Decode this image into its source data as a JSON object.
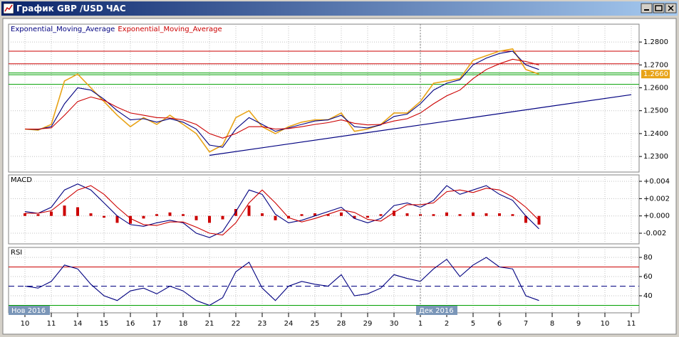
{
  "window": {
    "title": "График GBP /USD ЧАС",
    "period_labels": [
      "Нов 2016",
      "Дек 2016"
    ]
  },
  "chart_data": [
    {
      "type": "line",
      "categories": [
        "10",
        null,
        "11",
        null,
        "14",
        null,
        "15",
        null,
        "16",
        null,
        "17",
        null,
        "18",
        null,
        "21",
        null,
        "22",
        null,
        "23",
        null,
        "24",
        null,
        "25",
        null,
        "28",
        null,
        "29",
        null,
        "30",
        null,
        "1",
        null,
        "2",
        null,
        "5",
        null,
        "6",
        null,
        "7",
        null,
        "8",
        null,
        "9",
        null,
        "10",
        null,
        "11",
        null
      ],
      "ylim": [
        1.2232,
        1.2878
      ],
      "yticks": [
        {
          "value": 1.23,
          "label": "1.2300"
        },
        {
          "value": 1.24,
          "label": "1.2400"
        },
        {
          "value": 1.25,
          "label": "1.2500"
        },
        {
          "value": 1.26,
          "label": "1.2600"
        },
        {
          "value": 1.27,
          "label": "1.2700"
        },
        {
          "value": 1.28,
          "label": "1.2800"
        }
      ],
      "grid": true,
      "last_price": {
        "value": 1.266,
        "label": "1.2660"
      },
      "hlines": [
        {
          "value": 1.276,
          "color": "#cc0000"
        },
        {
          "value": 1.2705,
          "color": "#cc0000"
        },
        {
          "value": 1.2665,
          "color": "#00a000"
        },
        {
          "value": 1.2657,
          "color": "#00a000"
        },
        {
          "value": 1.2615,
          "color": "#00a000"
        }
      ],
      "trendline": {
        "x": [
          14,
          46
        ],
        "values": [
          1.2305,
          1.257
        ],
        "color": "#000080"
      },
      "series": [
        {
          "color": "#e8a317",
          "values": [
            1.242,
            1.2415,
            1.244,
            1.263,
            1.266,
            1.26,
            1.254,
            1.248,
            1.243,
            1.247,
            1.244,
            1.248,
            1.244,
            1.24,
            1.232,
            1.235,
            1.247,
            1.25,
            1.243,
            1.24,
            1.243,
            1.245,
            1.246,
            1.246,
            1.249,
            1.241,
            1.242,
            1.244,
            1.249,
            1.249,
            1.254,
            1.262,
            1.263,
            1.264,
            1.272,
            1.274,
            1.276,
            1.277,
            1.268,
            1.266,
            null,
            null,
            null,
            null,
            null,
            null,
            null,
            null
          ]
        },
        {
          "name": "Exponential_Moving_Average",
          "color": "#000080",
          "values": [
            1.242,
            1.2418,
            1.243,
            1.253,
            1.26,
            1.259,
            1.255,
            1.25,
            1.246,
            1.2465,
            1.245,
            1.2465,
            1.245,
            1.242,
            1.235,
            1.234,
            1.242,
            1.247,
            1.244,
            1.241,
            1.2425,
            1.244,
            1.2455,
            1.246,
            1.248,
            1.243,
            1.2425,
            1.2438,
            1.2475,
            1.2485,
            1.253,
            1.259,
            1.262,
            1.2635,
            1.27,
            1.273,
            1.275,
            1.276,
            1.27,
            1.268,
            null,
            null,
            null,
            null,
            null,
            null,
            null,
            null
          ]
        },
        {
          "name": "Exponential_Moving_Average",
          "color": "#cc0000",
          "values": [
            1.242,
            1.242,
            1.2425,
            1.248,
            1.254,
            1.256,
            1.2545,
            1.2515,
            1.249,
            1.248,
            1.247,
            1.2468,
            1.246,
            1.244,
            1.24,
            1.238,
            1.24,
            1.243,
            1.243,
            1.242,
            1.2422,
            1.243,
            1.244,
            1.2448,
            1.246,
            1.2445,
            1.2438,
            1.244,
            1.2455,
            1.2465,
            1.249,
            1.253,
            1.2565,
            1.259,
            1.264,
            1.268,
            1.2705,
            1.2725,
            1.2715,
            1.27,
            null,
            null,
            null,
            null,
            null,
            null,
            null,
            null
          ]
        }
      ]
    },
    {
      "type": "line",
      "title": "MACD",
      "ylim": [
        -0.00323,
        0.00474
      ],
      "yticks": [
        {
          "value": -0.002,
          "label": "-0.002"
        },
        {
          "value": 0,
          "label": "+0.000"
        },
        {
          "value": 0.002,
          "label": "+0.002"
        },
        {
          "value": 0.004,
          "label": "+0.004"
        }
      ],
      "grid": true,
      "series": [
        {
          "type": "bar",
          "color": "#cc0000",
          "values": [
            0.0003,
            0.0002,
            0.0005,
            0.0012,
            0.001,
            0.0003,
            -0.0002,
            -0.0008,
            -0.0009,
            -0.0003,
            0.0002,
            0.0004,
            0.0002,
            -0.0005,
            -0.0008,
            -0.0004,
            0.0008,
            0.0012,
            0.0003,
            -0.0005,
            -0.0003,
            0.0002,
            0.0003,
            0.0002,
            0.0004,
            -0.0003,
            -0.0002,
            0.0002,
            0.0006,
            0.0003,
            0.0002,
            0.0002,
            0.0004,
            0.0002,
            0.0004,
            0.0003,
            0.0003,
            0.0002,
            -0.0008,
            -0.001,
            null,
            null,
            null,
            null,
            null,
            null,
            null,
            null
          ]
        },
        {
          "color": "#000080",
          "values": [
            0.0005,
            0.0003,
            0.001,
            0.003,
            0.0037,
            0.003,
            0.0015,
            0,
            -0.001,
            -0.0012,
            -0.0008,
            -0.0005,
            -0.0008,
            -0.002,
            -0.0025,
            -0.0018,
            0.0005,
            0.003,
            0.0025,
            0.0002,
            -0.0008,
            -0.0005,
            0,
            0.0005,
            0.001,
            -0.0003,
            -0.0008,
            -0.0003,
            0.0012,
            0.0015,
            0.001,
            0.0018,
            0.0035,
            0.0025,
            0.003,
            0.0035,
            0.0025,
            0.0018,
            0,
            -0.0015,
            null,
            null,
            null,
            null,
            null,
            null,
            null,
            null
          ]
        },
        {
          "color": "#cc0000",
          "values": [
            0.0003,
            0.0003,
            0.0006,
            0.0018,
            0.003,
            0.0035,
            0.0025,
            0.001,
            -0.0003,
            -0.001,
            -0.0011,
            -0.0007,
            -0.0007,
            -0.0013,
            -0.002,
            -0.0022,
            -0.0008,
            0.0015,
            0.003,
            0.0015,
            -0.0002,
            -0.0007,
            -0.0003,
            0.0002,
            0.0007,
            0.0004,
            -0.0004,
            -0.0006,
            0.0004,
            0.0013,
            0.0013,
            0.0015,
            0.0028,
            0.003,
            0.0027,
            0.0032,
            0.003,
            0.0022,
            0.001,
            -0.0005,
            null,
            null,
            null,
            null,
            null,
            null,
            null,
            null
          ]
        }
      ]
    },
    {
      "type": "line",
      "title": "RSI",
      "ylim": [
        22.2,
        90.4
      ],
      "yticks": [
        40,
        60,
        80
      ],
      "grid": true,
      "hlines": [
        {
          "value": 70,
          "color": "#cc0000"
        },
        {
          "value": 50,
          "color": "#000080",
          "dashed": true
        },
        {
          "value": 30,
          "color": "#00a000"
        }
      ],
      "series": [
        {
          "color": "#000080",
          "values": [
            50,
            48,
            55,
            72,
            68,
            52,
            40,
            35,
            45,
            48,
            42,
            50,
            45,
            35,
            30,
            38,
            65,
            75,
            48,
            35,
            50,
            55,
            52,
            50,
            62,
            40,
            42,
            48,
            62,
            58,
            55,
            68,
            78,
            60,
            72,
            80,
            70,
            68,
            40,
            35,
            null,
            null,
            null,
            null,
            null,
            null,
            null,
            null
          ]
        }
      ]
    }
  ]
}
